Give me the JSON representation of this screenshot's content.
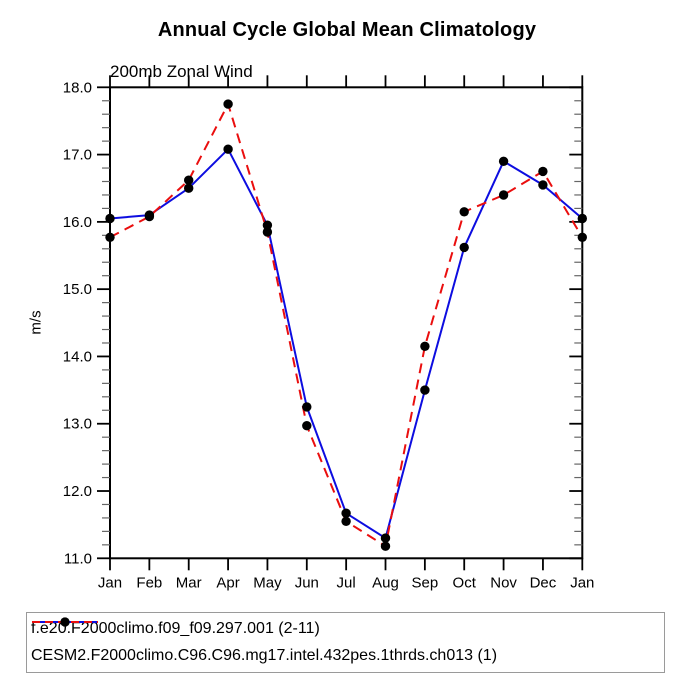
{
  "title": "Annual Cycle Global Mean Climatology",
  "subtitle": "200mb Zonal Wind",
  "chart_data": {
    "type": "line",
    "x_categories": [
      "Jan",
      "Feb",
      "Mar",
      "Apr",
      "May",
      "Jun",
      "Jul",
      "Aug",
      "Sep",
      "Oct",
      "Nov",
      "Dec",
      "Jan"
    ],
    "ylabel": "m/s",
    "ylim": [
      11.0,
      18.0
    ],
    "ytick_labels": [
      "11.0",
      "12.0",
      "13.0",
      "14.0",
      "15.0",
      "16.0",
      "17.0",
      "18.0"
    ],
    "ytick_minor_step": 0.2,
    "grid": false,
    "legend_position": "bottom-left-boxed",
    "series": [
      {
        "name": "f.e20.F2000climo.f09_f09.297.001 (2-11)",
        "color": "#0d0de0",
        "line_style": "solid",
        "marker": "filled-circle",
        "marker_color": "#000000",
        "values": [
          16.05,
          16.1,
          16.5,
          17.08,
          15.95,
          13.25,
          11.67,
          11.3,
          13.5,
          15.62,
          16.9,
          16.55,
          16.05
        ]
      },
      {
        "name": "CESM2.F2000climo.C96.C96.mg17.intel.432pes.1thrds.ch013 (1)",
        "color": "#ea0e0e",
        "line_style": "dashed",
        "marker": "filled-circle",
        "marker_color": "#000000",
        "values": [
          15.77,
          16.08,
          16.62,
          17.75,
          15.85,
          12.97,
          11.55,
          11.18,
          14.15,
          16.15,
          16.4,
          16.75,
          15.77
        ]
      }
    ]
  },
  "colors": {
    "axis": "#000000",
    "major_tick": "#000000",
    "minor_tick": "#666666",
    "legend_border": "#9a9a9a",
    "background": "#ffffff"
  }
}
